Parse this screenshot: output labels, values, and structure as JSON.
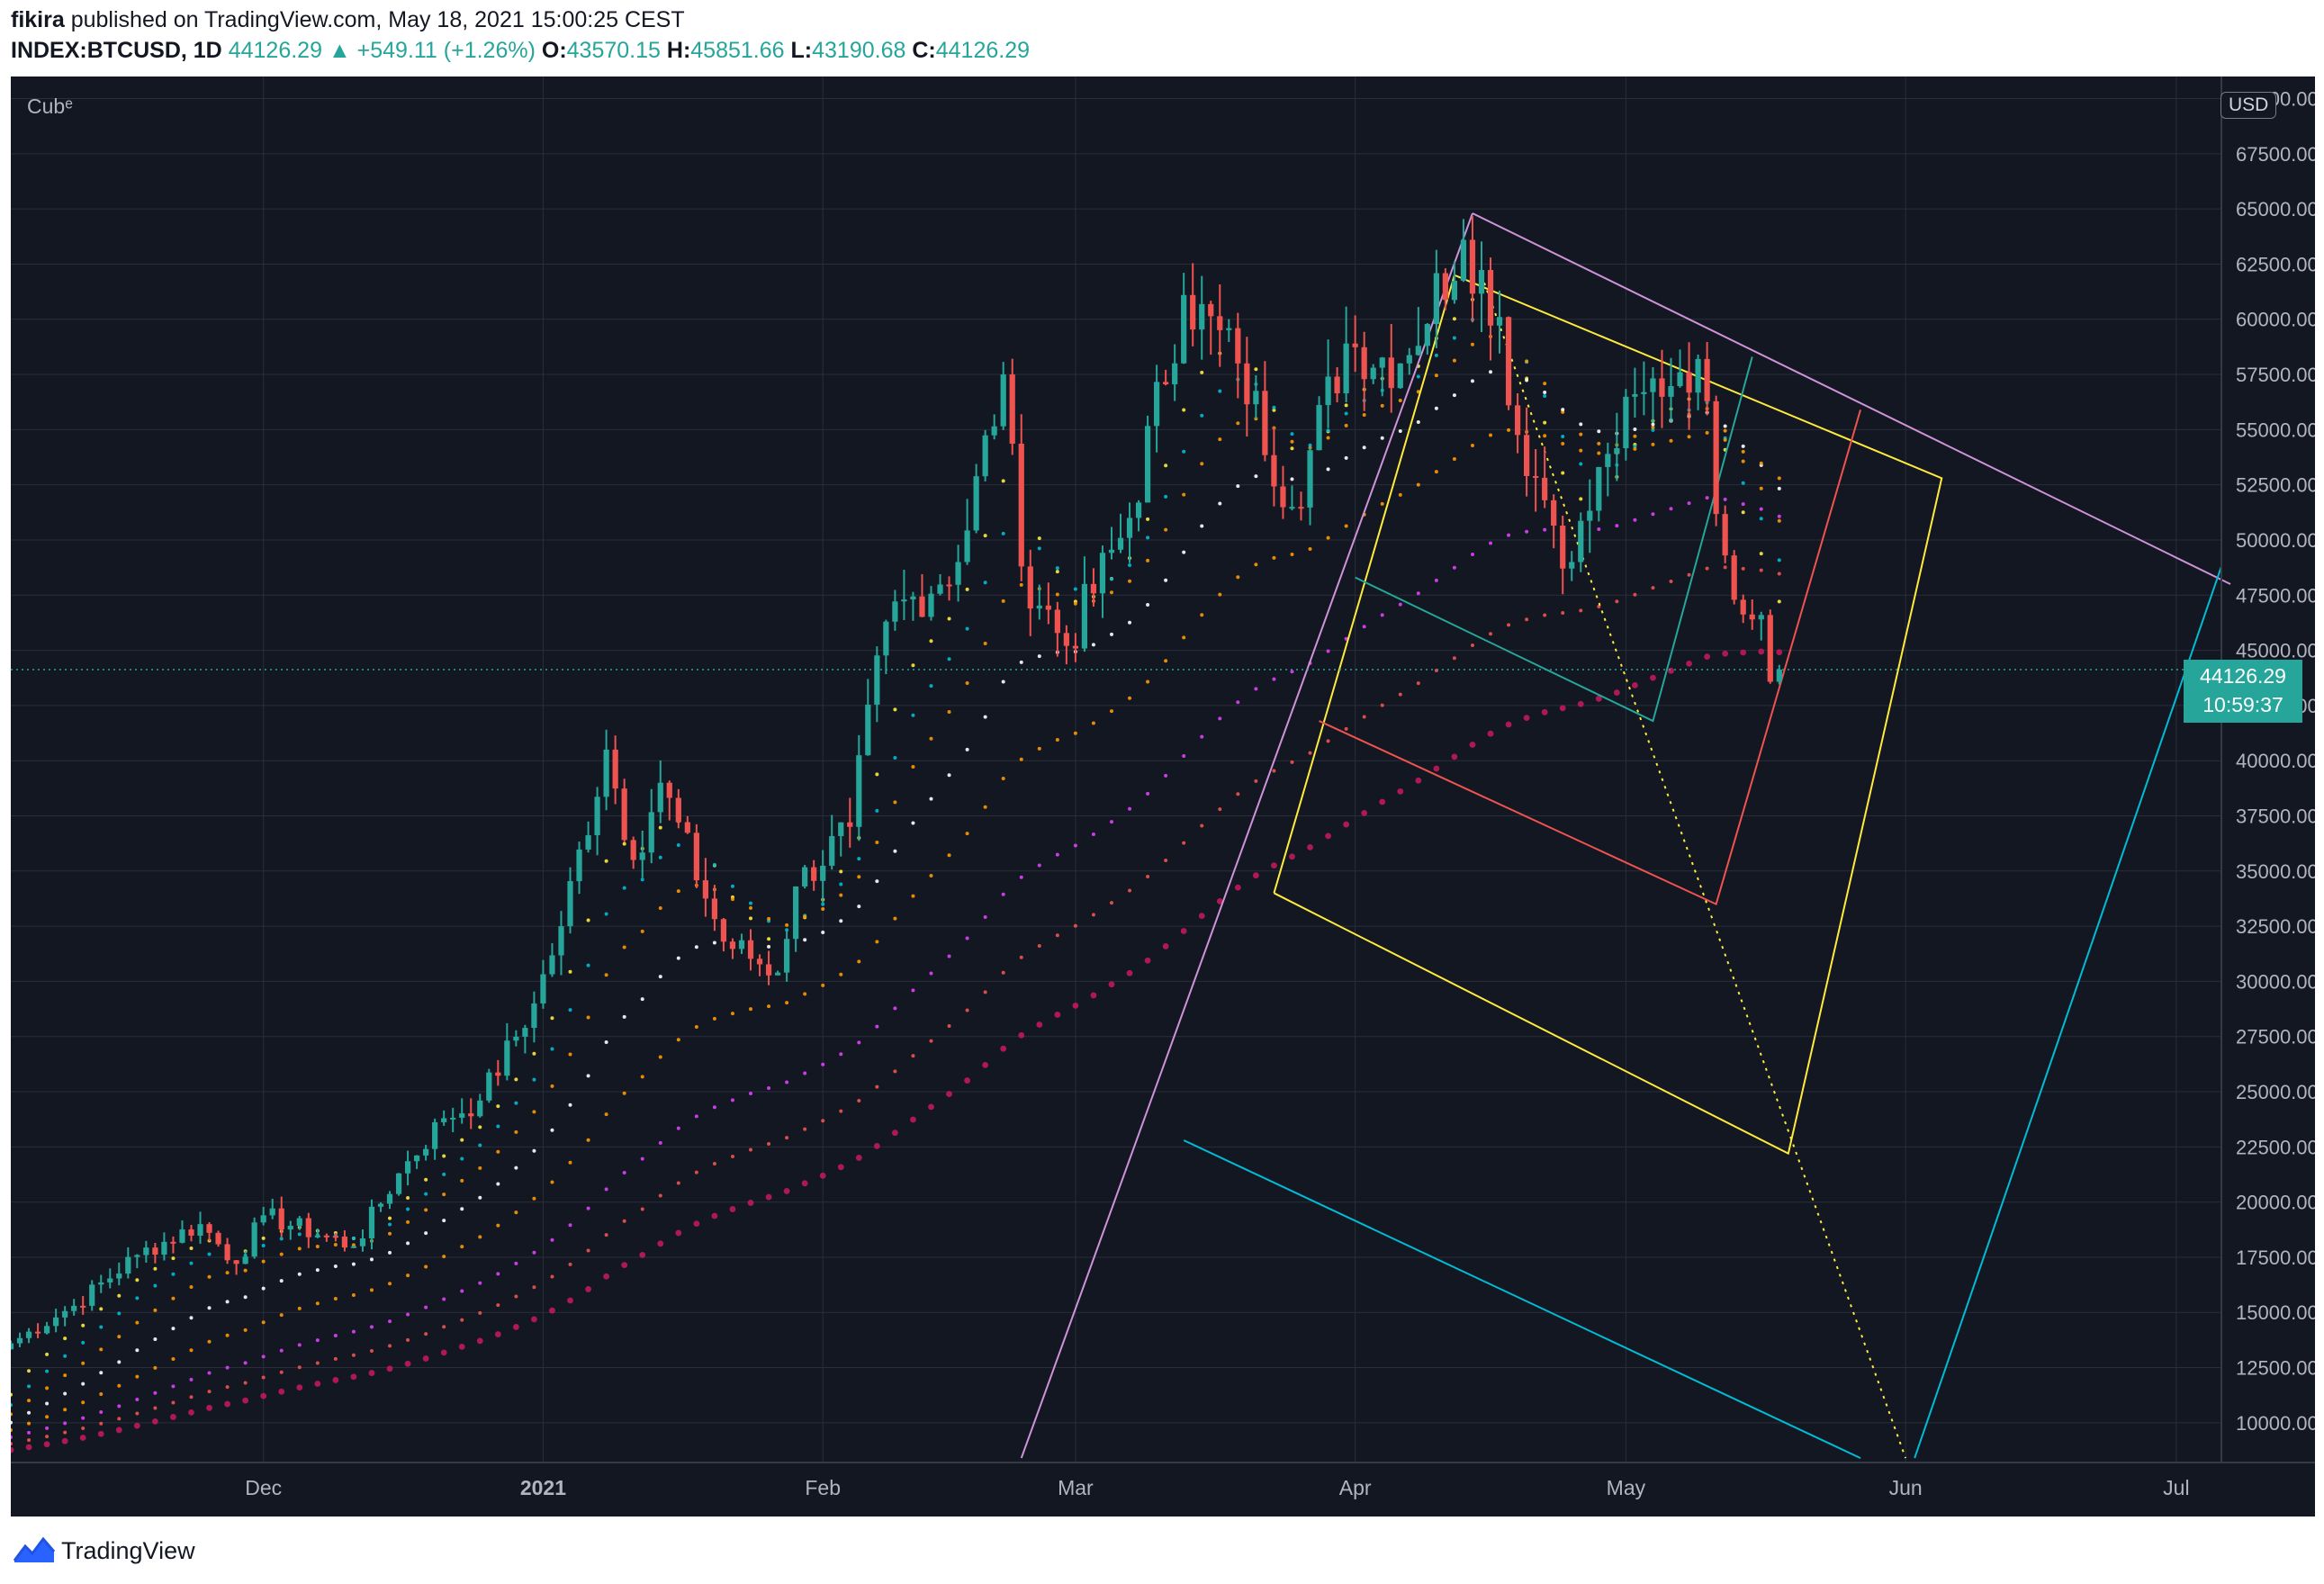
{
  "header": {
    "author": "fikira",
    "published_text": "published on TradingView.com, May 18, 2021 15:00:25 CEST",
    "symbol": "INDEX:BTCUSD, 1D",
    "last": "44126.29",
    "change": "▲ +549.11 (+1.26%)",
    "o_label": "O:",
    "o_value": "43570.15",
    "h_label": "H:",
    "h_value": "45851.66",
    "l_label": "L:",
    "l_value": "43190.68",
    "c_label": "C:",
    "c_value": "44126.29"
  },
  "chart": {
    "indicator_label": "Cubᵉ",
    "currency": "USD",
    "price_tag": {
      "price": "44126.29",
      "countdown": "10:59:37"
    }
  },
  "footer": {
    "brand": "TradingView"
  },
  "colors": {
    "background": "#131722",
    "grid": "#2a2e39",
    "text": "#b2b5be",
    "up": "#26a69a",
    "down": "#ef5350",
    "accent": "#26a69a"
  },
  "chart_data": {
    "type": "candlestick",
    "symbol": "INDEX:BTCUSD",
    "interval": "1D",
    "y_ticks": [
      "10000.00",
      "12500.00",
      "15000.00",
      "17500.00",
      "20000.00",
      "22500.00",
      "25000.00",
      "27500.00",
      "30000.00",
      "32500.00",
      "35000.00",
      "37500.00",
      "40000.00",
      "42500.00",
      "45000.00",
      "47500.00",
      "50000.00",
      "52500.00",
      "55000.00",
      "57500.00",
      "60000.00",
      "62500.00",
      "65000.00",
      "67500.00",
      "70000.00"
    ],
    "x_ticks": [
      {
        "label": "Dec",
        "x": "2020-12-01"
      },
      {
        "label": "2021",
        "x": "2021-01-01"
      },
      {
        "label": "Feb",
        "x": "2021-02-01"
      },
      {
        "label": "Mar",
        "x": "2021-03-01"
      },
      {
        "label": "Apr",
        "x": "2021-04-01"
      },
      {
        "label": "May",
        "x": "2021-05-01"
      },
      {
        "label": "Jun",
        "x": "2021-06-01"
      },
      {
        "label": "Jul",
        "x": "2021-07-01"
      }
    ],
    "x_range": [
      "2020-11-03",
      "2021-07-06"
    ],
    "y_range": [
      8200,
      71000
    ],
    "last_price": 44126.29,
    "anchors": [
      {
        "date": "2020-11-03",
        "close": 13600
      },
      {
        "date": "2020-11-10",
        "close": 15300
      },
      {
        "date": "2020-11-17",
        "close": 17600
      },
      {
        "date": "2020-11-24",
        "close": 19000
      },
      {
        "date": "2020-11-28",
        "close": 17200
      },
      {
        "date": "2020-12-01",
        "close": 19400
      },
      {
        "date": "2020-12-11",
        "close": 18000
      },
      {
        "date": "2020-12-16",
        "close": 21300
      },
      {
        "date": "2020-12-21",
        "close": 23800
      },
      {
        "date": "2020-12-25",
        "close": 24600
      },
      {
        "date": "2020-12-31",
        "close": 29000
      },
      {
        "date": "2021-01-03",
        "close": 32500
      },
      {
        "date": "2021-01-08",
        "close": 40500
      },
      {
        "date": "2021-01-11",
        "close": 35500
      },
      {
        "date": "2021-01-14",
        "close": 39000
      },
      {
        "date": "2021-01-21",
        "close": 31800
      },
      {
        "date": "2021-01-27",
        "close": 30400
      },
      {
        "date": "2021-01-29",
        "close": 34300
      },
      {
        "date": "2021-02-04",
        "close": 37000
      },
      {
        "date": "2021-02-08",
        "close": 46300
      },
      {
        "date": "2021-02-16",
        "close": 49000
      },
      {
        "date": "2021-02-21",
        "close": 57500
      },
      {
        "date": "2021-02-23",
        "close": 48800
      },
      {
        "date": "2021-02-28",
        "close": 45200
      },
      {
        "date": "2021-03-07",
        "close": 51000
      },
      {
        "date": "2021-03-13",
        "close": 61100
      },
      {
        "date": "2021-03-19",
        "close": 58000
      },
      {
        "date": "2021-03-25",
        "close": 51500
      },
      {
        "date": "2021-03-31",
        "close": 58900
      },
      {
        "date": "2021-04-06",
        "close": 58000
      },
      {
        "date": "2021-04-13",
        "close": 63600
      },
      {
        "date": "2021-04-17",
        "close": 60100
      },
      {
        "date": "2021-04-18",
        "close": 56100
      },
      {
        "date": "2021-04-22",
        "close": 51800
      },
      {
        "date": "2021-04-25",
        "close": 49000
      },
      {
        "date": "2021-04-29",
        "close": 53900
      },
      {
        "date": "2021-05-03",
        "close": 56700
      },
      {
        "date": "2021-05-07",
        "close": 57600
      },
      {
        "date": "2021-05-09",
        "close": 58200
      },
      {
        "date": "2021-05-12",
        "close": 49300
      },
      {
        "date": "2021-05-15",
        "close": 46400
      },
      {
        "date": "2021-05-16",
        "close": 46600
      },
      {
        "date": "2021-05-17",
        "close": 43577
      },
      {
        "date": "2021-05-18",
        "close": 44126
      }
    ],
    "ma_bands": [
      {
        "color": "#ffeb3b",
        "end_date": "2021-05-18",
        "end_value": 52200
      },
      {
        "color": "#00bcd4",
        "end_date": "2021-05-18",
        "end_value": 53600
      },
      {
        "color": "#ff9800",
        "end_date": "2021-05-18",
        "end_value": 47400
      },
      {
        "color": "#ffffff",
        "end_date": "2021-05-18",
        "end_value": 50000
      },
      {
        "color": "#ff9800",
        "end_date": "2021-05-18",
        "end_value": 47500
      },
      {
        "color": "#e040fb",
        "end_date": "2021-05-18",
        "end_value": 45300
      },
      {
        "color": "#ef5350",
        "end_date": "2021-05-18",
        "end_value": 43500
      },
      {
        "color": "#c2185b",
        "end_date": "2021-05-18",
        "end_value": 40900
      }
    ],
    "drawings": [
      {
        "name": "resistance-line",
        "color": "#ce93d8",
        "points": [
          [
            "2021-04-14",
            64800
          ],
          [
            "2021-07-07",
            48000
          ]
        ]
      },
      {
        "name": "fib-box-yellow",
        "color": "#ffeb3b",
        "points": [
          [
            "2021-03-23",
            34000
          ],
          [
            "2021-04-12",
            62000
          ],
          [
            "2021-06-05",
            52800
          ],
          [
            "2021-05-19",
            22200
          ],
          [
            "2021-03-23",
            34000
          ]
        ]
      },
      {
        "name": "fib-box-red",
        "color": "#ef5350",
        "points": [
          [
            "2021-03-28",
            41800
          ],
          [
            "2021-05-11",
            33500
          ],
          [
            "2021-05-27",
            55900
          ]
        ]
      },
      {
        "name": "fib-box-green",
        "color": "#26a69a",
        "points": [
          [
            "2021-04-01",
            48300
          ],
          [
            "2021-05-04",
            41800
          ],
          [
            "2021-05-15",
            58300
          ]
        ]
      },
      {
        "name": "fib-box-cyan",
        "color": "#00bcd4",
        "points": [
          [
            "2021-03-13",
            22800
          ],
          [
            "2021-05-27",
            8400
          ]
        ]
      },
      {
        "name": "fib-box-cyan-right",
        "color": "#00bcd4",
        "points": [
          [
            "2021-06-02",
            8400
          ],
          [
            "2021-07-06",
            48800
          ]
        ]
      },
      {
        "name": "fib-line-purple",
        "color": "#ce93d8",
        "points": [
          [
            "2021-02-23",
            8400
          ],
          [
            "2021-04-14",
            64800
          ]
        ]
      },
      {
        "name": "dotted-projection",
        "color": "#ffeb3b",
        "points": [
          [
            "2021-04-15",
            62000
          ],
          [
            "2021-06-01",
            8400
          ]
        ]
      }
    ]
  }
}
